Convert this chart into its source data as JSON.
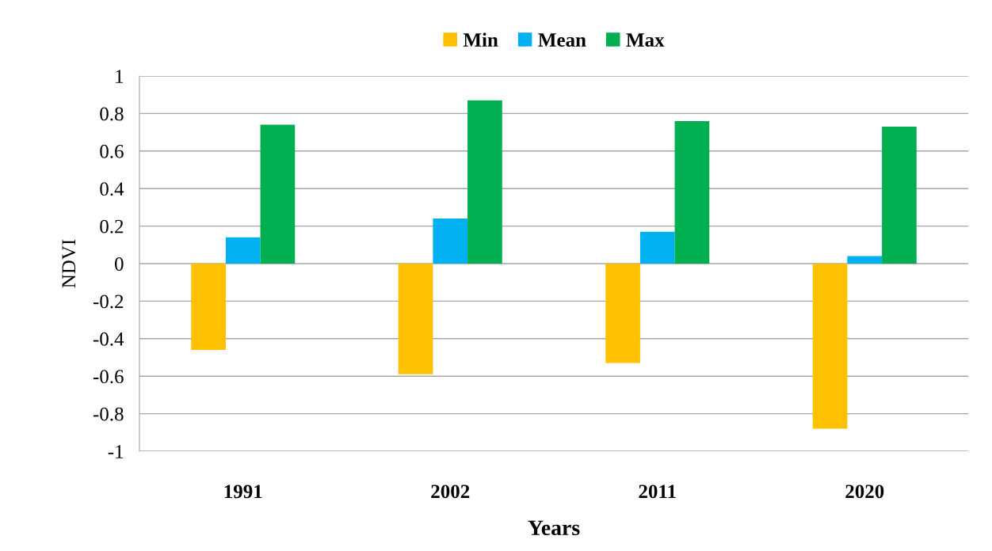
{
  "chart_data": {
    "type": "bar",
    "xlabel": "Years",
    "ylabel": "NDVI",
    "categories": [
      "1991",
      "2002",
      "2011",
      "2020"
    ],
    "series": [
      {
        "name": "Min",
        "color": "#ffc000",
        "values": [
          -0.46,
          -0.59,
          -0.53,
          -0.88
        ]
      },
      {
        "name": "Mean",
        "color": "#00b0f0",
        "values": [
          0.14,
          0.24,
          0.17,
          0.04
        ]
      },
      {
        "name": "Max",
        "color": "#00b050",
        "values": [
          0.74,
          0.87,
          0.76,
          0.73
        ]
      }
    ],
    "ylim": [
      -1,
      1
    ],
    "yticks": [
      -1,
      -0.8,
      -0.6,
      -0.4,
      -0.2,
      0,
      0.2,
      0.4,
      0.6,
      0.8,
      1
    ],
    "grid": "y",
    "legend": "top"
  }
}
